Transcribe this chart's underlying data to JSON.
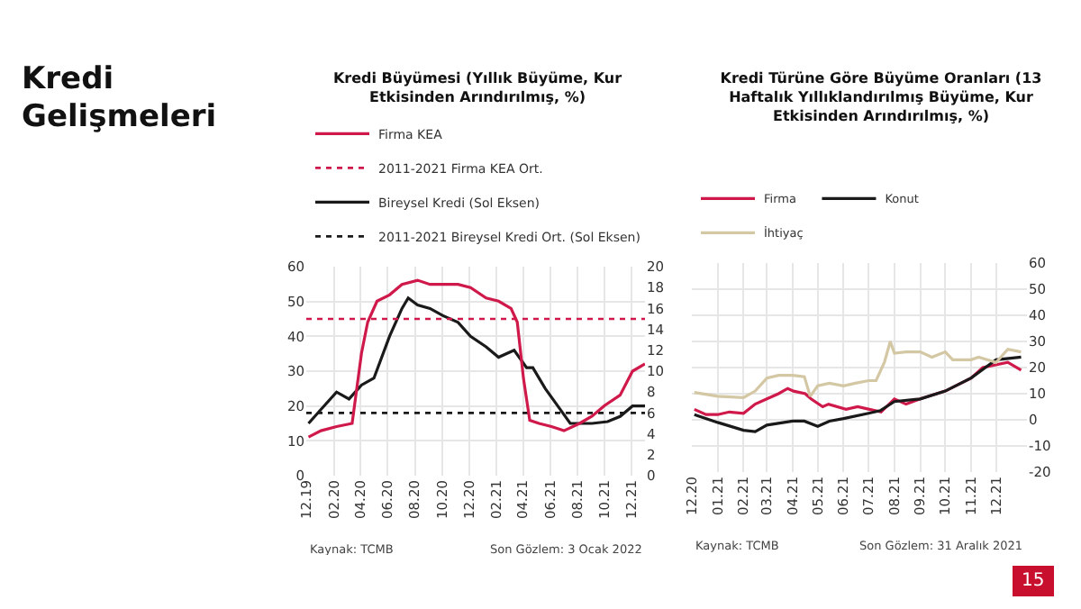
{
  "chart_data": [
    {
      "type": "other",
      "title": "Kredi Gelişmeleri",
      "annotations": [
        "15"
      ]
    },
    {
      "type": "line",
      "title": "Kredi Büyümesi (Yıllık Büyüme, Kur Etkisinden Arındırılmış, %)",
      "legend": "top",
      "grid": true,
      "xlim": [
        "2019-12-01",
        "2021-12-31"
      ],
      "xticks": [
        {
          "value": "2019-12-01",
          "label": "12.19"
        },
        {
          "value": "2020-02-01",
          "label": "02.20"
        },
        {
          "value": "2020-04-01",
          "label": "04.20"
        },
        {
          "value": "2020-06-01",
          "label": "06.20"
        },
        {
          "value": "2020-08-01",
          "label": "08.20"
        },
        {
          "value": "2020-10-01",
          "label": "10.20"
        },
        {
          "value": "2020-12-01",
          "label": "12.20"
        },
        {
          "value": "2021-02-01",
          "label": "02.21"
        },
        {
          "value": "2021-04-01",
          "label": "04.21"
        },
        {
          "value": "2021-06-01",
          "label": "06.21"
        },
        {
          "value": "2021-08-01",
          "label": "08.21"
        },
        {
          "value": "2021-10-01",
          "label": "10.21"
        },
        {
          "value": "2021-12-01",
          "label": "12.21"
        }
      ],
      "ylim": [
        0,
        60
      ],
      "yticks": [
        0,
        10,
        20,
        30,
        40,
        50,
        60
      ],
      "y2lim": [
        0,
        20
      ],
      "y2ticks": [
        0,
        2,
        4,
        6,
        8,
        10,
        12,
        14,
        16,
        18,
        20
      ],
      "series": [
        {
          "name": "Firma KEA",
          "color": "#d0194b",
          "axis": "y2",
          "x": [
            "2019-12-06",
            "2020-01-03",
            "2020-02-07",
            "2020-03-13",
            "2020-04-03",
            "2020-04-17",
            "2020-05-08",
            "2020-06-05",
            "2020-07-03",
            "2020-08-07",
            "2020-09-04",
            "2020-10-02",
            "2020-11-06",
            "2020-12-04",
            "2021-01-08",
            "2021-02-05",
            "2021-03-05",
            "2021-03-19",
            "2021-04-02",
            "2021-04-16",
            "2021-05-07",
            "2021-06-04",
            "2021-07-02",
            "2021-08-06",
            "2021-09-03",
            "2021-10-01",
            "2021-11-05",
            "2021-12-03",
            "2021-12-31"
          ],
          "values": [
            3.7,
            4.3,
            4.7,
            5,
            11.7,
            14.7,
            16.7,
            17.3,
            18.3,
            18.7,
            18.3,
            18.3,
            18.3,
            18,
            17,
            16.7,
            16,
            14.7,
            9.3,
            5.3,
            5,
            4.7,
            4.3,
            5,
            5.7,
            6.7,
            7.7,
            10,
            10.7
          ]
        },
        {
          "name": "Bireysel Kredi (Sol Eksen)",
          "color": "#1a1a1a",
          "x": [
            "2019-12-06",
            "2020-01-03",
            "2020-02-07",
            "2020-03-06",
            "2020-04-03",
            "2020-05-01",
            "2020-06-05",
            "2020-07-03",
            "2020-07-17",
            "2020-08-07",
            "2020-09-04",
            "2020-10-02",
            "2020-11-06",
            "2020-12-04",
            "2021-01-08",
            "2021-02-05",
            "2021-03-12",
            "2021-04-09",
            "2021-04-23",
            "2021-05-21",
            "2021-06-18",
            "2021-07-16",
            "2021-08-06",
            "2021-09-03",
            "2021-10-08",
            "2021-11-05",
            "2021-12-03",
            "2021-12-31"
          ],
          "values": [
            15,
            19,
            24,
            22,
            26,
            28,
            40,
            48,
            51,
            49,
            48,
            46,
            44,
            40,
            37,
            34,
            36,
            31,
            31,
            25,
            20,
            15,
            15,
            15,
            15.5,
            17,
            20,
            20
          ]
        }
      ],
      "ref_lines": [
        {
          "axis": "y2",
          "value": 15,
          "label": "2011-2021 Firma KEA Ort.",
          "color": "#d0194b",
          "line_style": "dotted"
        },
        {
          "axis": "y",
          "value": 18,
          "label": "2011-2021 Bireysel Kredi Ort. (Sol Eksen)",
          "color": "#1a1a1a",
          "line_style": "dotted"
        }
      ],
      "annotations": [
        "Kaynak: TCMB",
        "Son Gözlem: 3 Ocak 2022"
      ]
    },
    {
      "type": "line",
      "title": "Kredi Türüne Göre Büyüme Oranları (13 Haftalık Yıllıklandırılmış Büyüme, Kur Etkisinden Arındırılmış, %)",
      "legend": "top",
      "grid": true,
      "xlim": [
        "2020-12-01",
        "2022-01-07"
      ],
      "xticks": [
        {
          "value": "2020-12-01",
          "label": "12.20"
        },
        {
          "value": "2021-01-01",
          "label": "01.21"
        },
        {
          "value": "2021-02-01",
          "label": "02.21"
        },
        {
          "value": "2021-03-01",
          "label": "03.21"
        },
        {
          "value": "2021-04-01",
          "label": "04.21"
        },
        {
          "value": "2021-05-01",
          "label": "05.21"
        },
        {
          "value": "2021-06-01",
          "label": "06.21"
        },
        {
          "value": "2021-07-01",
          "label": "07.21"
        },
        {
          "value": "2021-08-01",
          "label": "08.21"
        },
        {
          "value": "2021-09-01",
          "label": "09.21"
        },
        {
          "value": "2021-10-01",
          "label": "10.21"
        },
        {
          "value": "2021-11-01",
          "label": "11.21"
        },
        {
          "value": "2021-12-01",
          "label": "12.21"
        }
      ],
      "ylim": [
        -20,
        60
      ],
      "yticks": [
        -20,
        -10,
        0,
        10,
        20,
        30,
        40,
        50,
        60
      ],
      "series": [
        {
          "name": "Firma",
          "color": "#d0194b",
          "x": [
            "2020-12-04",
            "2020-12-18",
            "2021-01-01",
            "2021-01-15",
            "2021-02-01",
            "2021-02-15",
            "2021-03-01",
            "2021-03-15",
            "2021-03-26",
            "2021-04-02",
            "2021-04-16",
            "2021-04-23",
            "2021-05-07",
            "2021-05-14",
            "2021-06-04",
            "2021-06-18",
            "2021-07-02",
            "2021-07-16",
            "2021-08-01",
            "2021-08-15",
            "2021-09-01",
            "2021-10-01",
            "2021-11-01",
            "2021-11-15",
            "2021-12-15",
            "2021-12-31"
          ],
          "values": [
            4,
            2,
            2,
            3,
            2.5,
            6,
            8,
            10,
            12,
            11,
            10,
            8,
            5,
            6,
            4,
            5,
            4,
            3,
            8,
            6,
            8,
            11,
            16,
            20,
            22,
            19
          ]
        },
        {
          "name": "Konut",
          "color": "#1a1a1a",
          "x": [
            "2020-12-04",
            "2021-01-01",
            "2021-02-01",
            "2021-02-15",
            "2021-03-01",
            "2021-04-01",
            "2021-04-15",
            "2021-05-01",
            "2021-05-15",
            "2021-06-01",
            "2021-07-01",
            "2021-07-15",
            "2021-08-01",
            "2021-09-01",
            "2021-10-01",
            "2021-11-01",
            "2021-12-01",
            "2021-12-31"
          ],
          "values": [
            2,
            -1,
            -4,
            -4.5,
            -2,
            -0.5,
            -0.5,
            -2.5,
            -0.5,
            0.5,
            2.5,
            3.5,
            7,
            8,
            11,
            16,
            23,
            24
          ]
        },
        {
          "name": "İhtiyaç",
          "color": "#d3c7a4",
          "x": [
            "2020-12-04",
            "2021-01-01",
            "2021-02-01",
            "2021-02-15",
            "2021-03-01",
            "2021-03-15",
            "2021-04-01",
            "2021-04-15",
            "2021-04-22",
            "2021-05-01",
            "2021-05-15",
            "2021-06-01",
            "2021-06-15",
            "2021-07-01",
            "2021-07-10",
            "2021-07-20",
            "2021-07-27",
            "2021-08-01",
            "2021-08-15",
            "2021-09-01",
            "2021-09-15",
            "2021-10-01",
            "2021-10-10",
            "2021-11-01",
            "2021-11-10",
            "2021-12-01",
            "2021-12-15",
            "2021-12-31"
          ],
          "values": [
            10.5,
            9,
            8.5,
            11,
            16,
            17,
            17,
            16.5,
            9,
            13,
            14,
            13,
            14,
            15,
            15,
            22,
            30,
            25.5,
            26,
            26,
            24,
            26,
            23,
            23,
            24,
            22,
            27,
            26
          ]
        }
      ],
      "annotations": [
        "Kaynak: TCMB",
        "Son Gözlem: 31 Aralık 2021"
      ]
    }
  ]
}
